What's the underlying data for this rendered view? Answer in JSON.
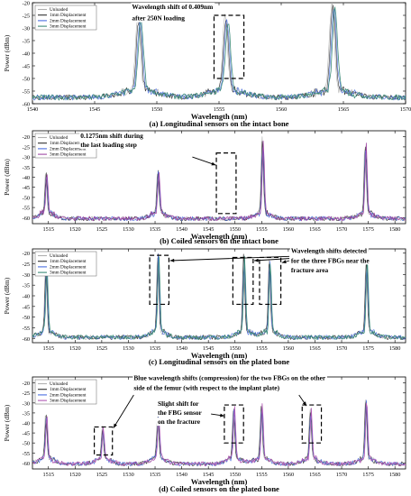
{
  "chart_data": [
    {
      "type": "line",
      "caption": "(a) Longitudinal sensors on the intact bone",
      "xlabel": "Wavelength (nm)",
      "ylabel": "Power (dBm)",
      "xlim": [
        1540,
        1570
      ],
      "ylim": [
        -60,
        -20
      ],
      "xticks": [
        1540,
        1545,
        1550,
        1555,
        1560,
        1565,
        1570
      ],
      "yticks": [
        -60,
        -55,
        -50,
        -45,
        -40,
        -35,
        -30,
        -25,
        -20
      ],
      "legend": [
        "Unloaded",
        "1mm Displacement",
        "2mm Displacement",
        "3mm Displacement"
      ],
      "legend_position": "top-left",
      "peaks": [
        {
          "x": 1548.6,
          "y": -29
        },
        {
          "x": 1555.6,
          "y": -29
        },
        {
          "x": 1564.2,
          "y": -23
        }
      ],
      "annotations": [
        {
          "text": "Wavelength shift of 0.409nm",
          "x": 1548,
          "y": -22.5
        },
        {
          "text": "after 250N loading",
          "x": 1548,
          "y": -27
        }
      ],
      "boxes": [
        [
          1554.6,
          1557.0,
          -50,
          -25
        ]
      ],
      "arrows": []
    },
    {
      "type": "line",
      "caption": "(b)  Coiled sensors on the intact bone",
      "xlabel": "Wavelength (nm)",
      "ylabel": "Power (dBm)",
      "xlim": [
        1512,
        1582
      ],
      "ylim": [
        -63,
        -17
      ],
      "xticks": [
        1515,
        1520,
        1525,
        1530,
        1535,
        1540,
        1545,
        1550,
        1555,
        1560,
        1565,
        1570,
        1575,
        1580
      ],
      "yticks": [
        -60,
        -55,
        -50,
        -45,
        -40,
        -35,
        -30,
        -25,
        -20
      ],
      "legend": [
        "Unloaded",
        "1mm Displacement",
        "2mm Displacement",
        "3mm Displacement"
      ],
      "legend_position": "top-left",
      "peaks": [
        {
          "x": 1514.6,
          "y": -40
        },
        {
          "x": 1535.6,
          "y": -39
        },
        {
          "x": 1555.2,
          "y": -24
        },
        {
          "x": 1574.5,
          "y": -26
        }
      ],
      "annotations": [
        {
          "text": "0.1275nm  shift  during",
          "x": 1521,
          "y": -20.5
        },
        {
          "text": "the last loading step",
          "x": 1521,
          "y": -25
        }
      ],
      "boxes": [
        [
          1546.5,
          1550.2,
          -58,
          -28
        ]
      ],
      "arrows": [
        [
          1542,
          -30,
          1546.4,
          -34
        ]
      ]
    },
    {
      "type": "line",
      "caption": "(c) Longitudinal sensors on the plated bone",
      "xlabel": "Wavelength (nm)",
      "ylabel": "Power (dBm)",
      "xlim": [
        1512,
        1582
      ],
      "ylim": [
        -62,
        -18
      ],
      "xticks": [
        1515,
        1520,
        1525,
        1530,
        1535,
        1540,
        1545,
        1550,
        1555,
        1560,
        1565,
        1570,
        1575,
        1580
      ],
      "yticks": [
        -60,
        -55,
        -50,
        -45,
        -40,
        -35,
        -30,
        -25,
        -20
      ],
      "legend": [
        "Unloaded",
        "1mm Displacement",
        "2mm Displacement",
        "3mm Displacement"
      ],
      "legend_position": "top-left",
      "peaks": [
        {
          "x": 1514.6,
          "y": -26
        },
        {
          "x": 1535.6,
          "y": -22
        },
        {
          "x": 1551.7,
          "y": -23
        },
        {
          "x": 1556.5,
          "y": -25
        },
        {
          "x": 1574.7,
          "y": -25
        }
      ],
      "annotations": [
        {
          "text": "Wavelength shifts detected",
          "x": 1560.5,
          "y": -20
        },
        {
          "text": "for the three FBGs near the",
          "x": 1560.5,
          "y": -24.5
        },
        {
          "text": "fracture area",
          "x": 1560.5,
          "y": -29
        }
      ],
      "boxes": [
        [
          1534.0,
          1537.6,
          -44,
          -21
        ],
        [
          1549.6,
          1553.4,
          -44,
          -22
        ],
        [
          1554.6,
          1558.6,
          -44,
          -22
        ]
      ],
      "arrows": [
        [
          1560.2,
          -21.5,
          1537.8,
          -23.5
        ],
        [
          1560.2,
          -22.5,
          1553.6,
          -23.5
        ],
        [
          1560.2,
          -23.5,
          1558.8,
          -24.5
        ]
      ]
    },
    {
      "type": "line",
      "caption": "(d) Coiled sensors on the plated bone",
      "xlabel": "Wavelength (nm)",
      "ylabel": "Power (dBm)",
      "xlim": [
        1512,
        1582
      ],
      "ylim": [
        -63,
        -17
      ],
      "xticks": [
        1515,
        1520,
        1525,
        1530,
        1535,
        1540,
        1545,
        1550,
        1555,
        1560,
        1565,
        1570,
        1575,
        1580
      ],
      "yticks": [
        -60,
        -55,
        -50,
        -45,
        -40,
        -35,
        -30,
        -25,
        -20
      ],
      "legend": [
        "Unloaded",
        "1mm Displacement",
        "2mm Displacement",
        "3mm Displacement"
      ],
      "legend_position": "top-left",
      "peaks": [
        {
          "x": 1514.6,
          "y": -38
        },
        {
          "x": 1525.2,
          "y": -45
        },
        {
          "x": 1535.6,
          "y": -38
        },
        {
          "x": 1549.8,
          "y": -35
        },
        {
          "x": 1555.0,
          "y": -33
        },
        {
          "x": 1564.2,
          "y": -36
        },
        {
          "x": 1574.6,
          "y": -30
        }
      ],
      "annotations": [
        {
          "text": "Blue wavelength shifts (compression) for the two FBGs on the other",
          "x": 1531,
          "y": -18.5
        },
        {
          "text": "side of the femur (with respect to the implant plate)",
          "x": 1531,
          "y": -23.5
        },
        {
          "text": "Slight shift for",
          "x": 1535.5,
          "y": -31.5
        },
        {
          "text": "the FBG sensor",
          "x": 1535.5,
          "y": -36
        },
        {
          "text": "on the fracture",
          "x": 1535.5,
          "y": -40.5
        }
      ],
      "boxes": [
        [
          1523.6,
          1527.0,
          -56,
          -42
        ],
        [
          1548.0,
          1551.6,
          -50,
          -31
        ],
        [
          1562.6,
          1566.2,
          -50,
          -31
        ]
      ],
      "arrows": [
        [
          1531,
          -26,
          1527.2,
          -42.5
        ],
        [
          1562,
          -26,
          1563.4,
          -31.5
        ],
        [
          1545.5,
          -35.5,
          1548.0,
          -36.5
        ]
      ]
    }
  ]
}
